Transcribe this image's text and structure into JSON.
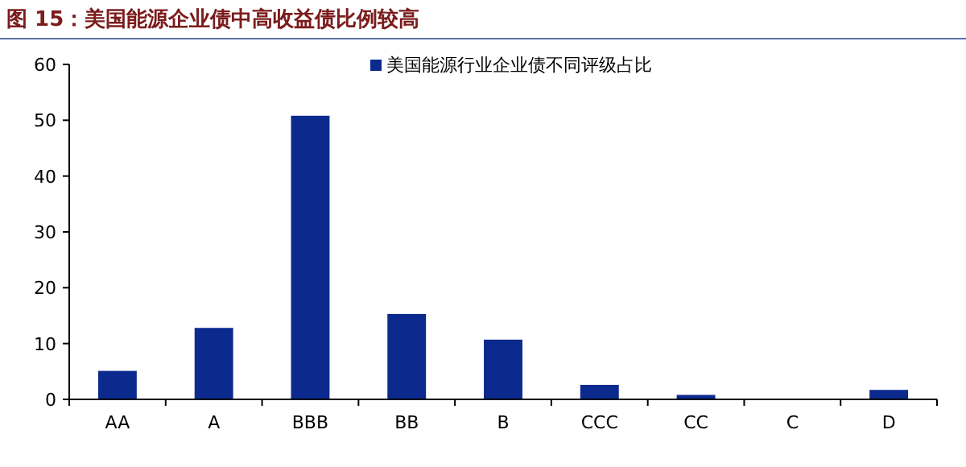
{
  "chart_data": {
    "type": "bar",
    "title": "图 15：美国能源企业债中高收益债比例较高",
    "categories": [
      "AA",
      "A",
      "BBB",
      "BB",
      "B",
      "CCC",
      "CC",
      "C",
      "D"
    ],
    "series": [
      {
        "name": "美国能源行业企业债不同评级占比",
        "color": "#0c2a8e",
        "values": [
          5.1,
          12.8,
          50.8,
          15.3,
          10.7,
          2.6,
          0.8,
          0,
          1.7
        ]
      }
    ],
    "ylim": [
      0,
      60
    ],
    "yticks": [
      0,
      10,
      20,
      30,
      40,
      50,
      60
    ],
    "legend": "top",
    "grid": false
  }
}
